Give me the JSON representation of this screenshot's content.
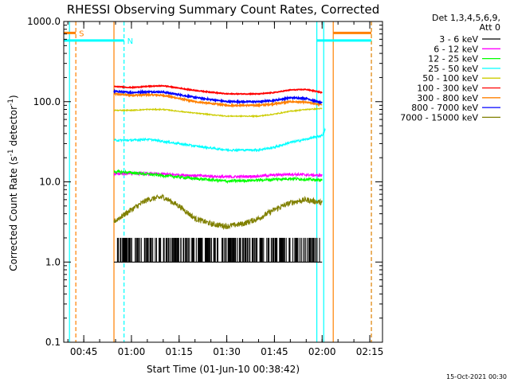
{
  "chart_data": {
    "type": "line",
    "title": "RHESSI Observing Summary Count Rates, Corrected",
    "xlabel": "Start Time (01-Jun-10 00:38:42)",
    "ylabel_prefix": "Corrected Count Rate (s",
    "ylabel_sup1": "-1",
    "ylabel_mid": " detector",
    "ylabel_sup2": "-1",
    "ylabel_suffix": ")",
    "y_scale": "log",
    "ylim": [
      0.1,
      1000
    ],
    "y_ticks": [
      {
        "value": 0.1,
        "label": "0.1"
      },
      {
        "value": 1,
        "label": "1.0"
      },
      {
        "value": 10,
        "label": "10.0"
      },
      {
        "value": 100,
        "label": "100.0"
      },
      {
        "value": 1000,
        "label": "1000.0"
      }
    ],
    "xlim": [
      "00:38:42",
      "02:19:00"
    ],
    "x_ticks": [
      "00:45",
      "01:00",
      "01:15",
      "01:30",
      "01:45",
      "02:00",
      "02:15"
    ],
    "legend_header": [
      "Det 1,3,4,5,6,9,",
      "Att 0"
    ],
    "legend_placement": "outside-right",
    "series": [
      {
        "name": "3 - 6 keV",
        "color": "#000000",
        "points": [
          [
            "00:54:30",
            1.0
          ],
          [
            "01:00",
            1.0
          ],
          [
            "01:15",
            1.0
          ],
          [
            "01:30",
            1.0
          ],
          [
            "01:45",
            1.0
          ],
          [
            "01:50",
            1.0
          ],
          [
            "02:00",
            1.0
          ]
        ]
      },
      {
        "name": "6 - 12 keV",
        "color": "#ff00ff",
        "points": [
          [
            "00:54:30",
            12.5
          ],
          [
            "01:00",
            12.8
          ],
          [
            "01:10",
            12.5
          ],
          [
            "01:20",
            12.0
          ],
          [
            "01:30",
            11.5
          ],
          [
            "01:40",
            11.8
          ],
          [
            "01:50",
            12.5
          ],
          [
            "02:00",
            12.0
          ]
        ]
      },
      {
        "name": "12 - 25 keV",
        "color": "#00ff00",
        "points": [
          [
            "00:54:30",
            13.5
          ],
          [
            "01:00",
            13.0
          ],
          [
            "01:10",
            12.0
          ],
          [
            "01:20",
            11.0
          ],
          [
            "01:30",
            10.2
          ],
          [
            "01:40",
            10.5
          ],
          [
            "01:50",
            11.0
          ],
          [
            "02:00",
            10.5
          ]
        ]
      },
      {
        "name": "25 - 50 keV",
        "color": "#00ffff",
        "points": [
          [
            "00:54:30",
            33
          ],
          [
            "01:00",
            33
          ],
          [
            "01:05",
            34
          ],
          [
            "01:10",
            32
          ],
          [
            "01:20",
            28
          ],
          [
            "01:30",
            25
          ],
          [
            "01:40",
            25
          ],
          [
            "01:45",
            27
          ],
          [
            "01:50",
            31
          ],
          [
            "01:55",
            34
          ],
          [
            "02:00",
            38
          ],
          [
            "02:01",
            45
          ]
        ]
      },
      {
        "name": "50 - 100 keV",
        "color": "#cccc00",
        "points": [
          [
            "00:54:30",
            78
          ],
          [
            "01:00",
            78
          ],
          [
            "01:05",
            80
          ],
          [
            "01:10",
            80
          ],
          [
            "01:20",
            72
          ],
          [
            "01:30",
            66
          ],
          [
            "01:40",
            66
          ],
          [
            "01:45",
            70
          ],
          [
            "01:50",
            76
          ],
          [
            "01:55",
            80
          ],
          [
            "02:00",
            82
          ]
        ]
      },
      {
        "name": "100 - 300 keV",
        "color": "#ff0000",
        "points": [
          [
            "00:54:30",
            155
          ],
          [
            "01:00",
            150
          ],
          [
            "01:05",
            155
          ],
          [
            "01:10",
            158
          ],
          [
            "01:20",
            138
          ],
          [
            "01:30",
            125
          ],
          [
            "01:40",
            125
          ],
          [
            "01:45",
            130
          ],
          [
            "01:50",
            140
          ],
          [
            "01:55",
            142
          ],
          [
            "02:00",
            130
          ]
        ]
      },
      {
        "name": "300 - 800 keV",
        "color": "#ff8000",
        "points": [
          [
            "00:54:30",
            125
          ],
          [
            "01:00",
            120
          ],
          [
            "01:05",
            122
          ],
          [
            "01:10",
            120
          ],
          [
            "01:20",
            100
          ],
          [
            "01:30",
            90
          ],
          [
            "01:40",
            90
          ],
          [
            "01:45",
            94
          ],
          [
            "01:50",
            100
          ],
          [
            "01:55",
            98
          ],
          [
            "02:00",
            92
          ]
        ]
      },
      {
        "name": "800 - 7000 keV",
        "color": "#0000ff",
        "points": [
          [
            "00:54:30",
            135
          ],
          [
            "01:00",
            130
          ],
          [
            "01:05",
            133
          ],
          [
            "01:10",
            132
          ],
          [
            "01:20",
            113
          ],
          [
            "01:30",
            100
          ],
          [
            "01:40",
            100
          ],
          [
            "01:45",
            104
          ],
          [
            "01:50",
            112
          ],
          [
            "01:55",
            110
          ],
          [
            "02:00",
            96
          ]
        ]
      },
      {
        "name": "7000 - 15000 keV",
        "color": "#808000",
        "points": [
          [
            "00:54:30",
            3.2
          ],
          [
            "01:00",
            4.5
          ],
          [
            "01:05",
            6.0
          ],
          [
            "01:10",
            6.5
          ],
          [
            "01:15",
            5.0
          ],
          [
            "01:20",
            3.5
          ],
          [
            "01:25",
            3.0
          ],
          [
            "01:30",
            2.8
          ],
          [
            "01:35",
            3.0
          ],
          [
            "01:40",
            3.5
          ],
          [
            "01:45",
            4.5
          ],
          [
            "01:50",
            5.5
          ],
          [
            "01:55",
            6.0
          ],
          [
            "02:00",
            5.5
          ]
        ]
      }
    ],
    "annotations": [
      {
        "label": "S",
        "color": "#ff8000",
        "segments": [
          [
            "00:38:42",
            "00:42:30"
          ],
          [
            "02:03:30",
            "02:15:30"
          ]
        ],
        "y": 720
      },
      {
        "label": "N",
        "color": "#00ffff",
        "segments": [
          [
            "00:38:42",
            "00:57:40"
          ],
          [
            "01:58:20",
            "02:15:30"
          ]
        ],
        "y": 580
      }
    ],
    "vertical_markers": [
      {
        "time": "00:40:30",
        "color": "#00ffff",
        "style": "solid"
      },
      {
        "time": "00:42:30",
        "color": "#ff8000",
        "style": "dashed"
      },
      {
        "time": "00:54:30",
        "color": "#ff8000",
        "style": "solid"
      },
      {
        "time": "00:57:40",
        "color": "#00ffff",
        "style": "dashed"
      },
      {
        "time": "01:58:20",
        "color": "#00ffff",
        "style": "solid"
      },
      {
        "time": "02:00:30",
        "color": "#00ffff",
        "style": "solid"
      },
      {
        "time": "02:03:30",
        "color": "#ff8000",
        "style": "solid"
      },
      {
        "time": "02:15:30",
        "color": "#00ffff",
        "style": "dashed"
      },
      {
        "time": "02:15:30",
        "color": "#ff8000",
        "style": "dashed"
      }
    ],
    "grid": false
  },
  "footer": {
    "timestamp": "15-Oct-2021 00:30"
  }
}
